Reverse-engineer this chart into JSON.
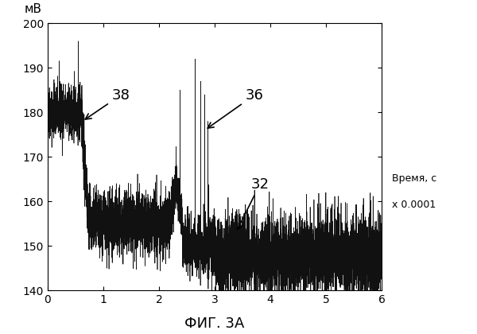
{
  "title": "ФИГ. 3А",
  "ylabel": "мВ",
  "xlabel_line1": "Время, с",
  "xlabel_line2": "x 0.0001",
  "xlim": [
    0,
    6
  ],
  "ylim": [
    140,
    200
  ],
  "yticks": [
    140,
    150,
    160,
    170,
    180,
    190,
    200
  ],
  "xticks": [
    0,
    1,
    2,
    3,
    4,
    5,
    6
  ],
  "label_38": "38",
  "label_36": "36",
  "label_32": "32",
  "seed": 42,
  "line_color": "#111111",
  "fontsize_title": 13,
  "fontsize_axis": 11,
  "fontsize_label": 13
}
